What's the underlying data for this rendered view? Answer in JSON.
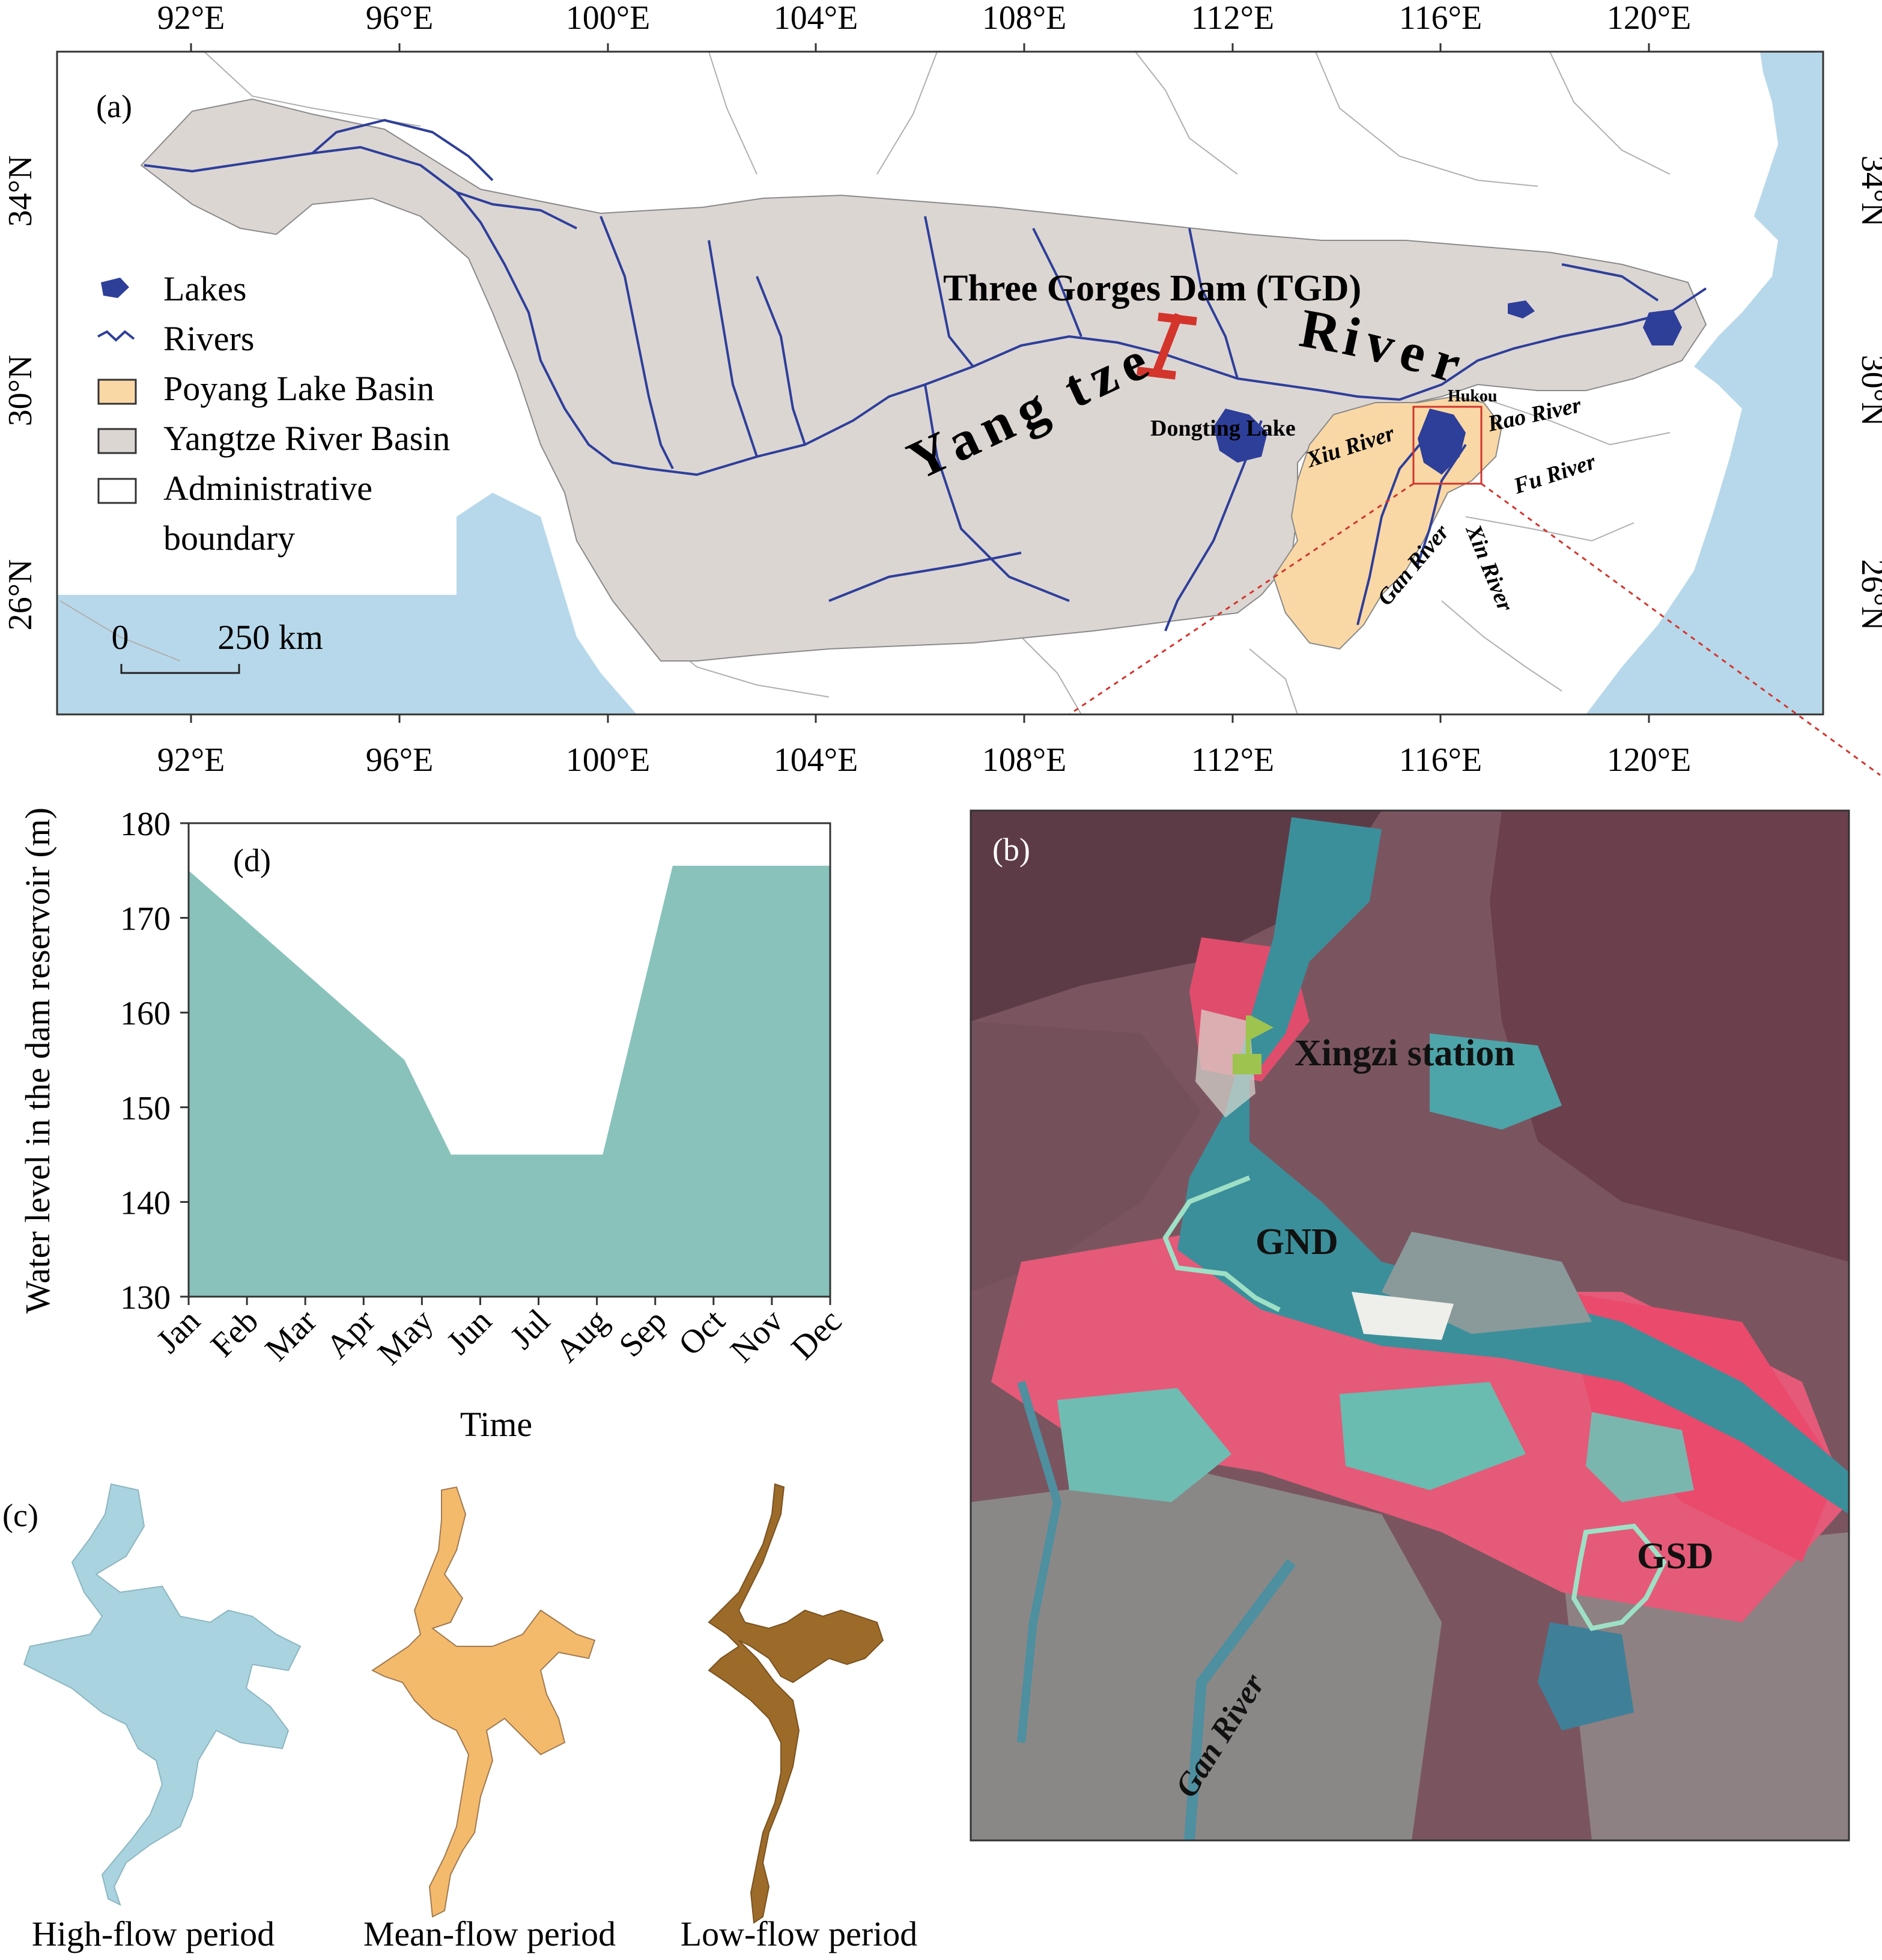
{
  "map_a": {
    "panel_label": "(a)",
    "lon_ticks": [
      "92°E",
      "96°E",
      "100°E",
      "104°E",
      "108°E",
      "112°E",
      "116°E",
      "120°E"
    ],
    "lat_ticks": [
      "34°N",
      "30°N",
      "26°N"
    ],
    "legend": {
      "lakes": "Lakes",
      "rivers": "Rivers",
      "poyang_basin": "Poyang Lake Basin",
      "yangtze_basin": "Yangtze River Basin",
      "admin_line1": "Administrative",
      "admin_line2": "boundary"
    },
    "scale": {
      "zero": "0",
      "distance": "250 km"
    },
    "labels": {
      "tgd": "Three Gorges Dam (TGD)",
      "yangtze_letters": [
        "Y",
        "a",
        "n",
        "g",
        "t",
        "z",
        "e"
      ],
      "river_letters": [
        "R",
        "i",
        "v",
        "e",
        "r"
      ],
      "dongting": "Dongting Lake",
      "hukou": "Hukou",
      "xiu": "Xiu River",
      "rao": "Rao River",
      "fu": "Fu River",
      "gan": "Gan River",
      "xin": "Xin River"
    },
    "colors": {
      "yangtze_basin": "#dcd6d3",
      "poyang_basin": "#fad8a6",
      "sea": "#b7d8ea",
      "river": "#2e3f9a",
      "dam": "#d3342b",
      "inset_box": "#d3342b"
    }
  },
  "satellite_b": {
    "panel_label": "(b)",
    "xingzi": "Xingzi station",
    "gnd": "GND",
    "gsd": "GSD",
    "gan_river": "Gan River"
  },
  "chart_d": {
    "panel_label": "(d)",
    "ylabel": "Water level in the dam reservoir (m)",
    "xlabel": "Time"
  },
  "chart_data": {
    "type": "area",
    "categories": [
      "Jan",
      "Feb",
      "Mar",
      "Apr",
      "May",
      "Jun",
      "Jul",
      "Aug",
      "Sep",
      "Oct",
      "Nov",
      "Dec"
    ],
    "x": [
      1,
      4.7,
      5.5,
      8.1,
      9.3,
      12
    ],
    "values": [
      175,
      155,
      145,
      145,
      175.5,
      175.5
    ],
    "yticks": [
      130,
      140,
      150,
      160,
      170,
      180
    ],
    "ylim": [
      130,
      180
    ],
    "xlim": [
      1,
      12
    ],
    "ylabel": "Water level in the dam reservoir (m)",
    "xlabel": "Time",
    "fill": "#88c2bb"
  },
  "shapes_c": {
    "panel_label": "(c)",
    "high": "High-flow period",
    "mean": "Mean-flow period",
    "low": "Low-flow period",
    "colors": {
      "high": "#a9d3df",
      "mean": "#f4ba6c",
      "low": "#9c6b2a"
    }
  }
}
